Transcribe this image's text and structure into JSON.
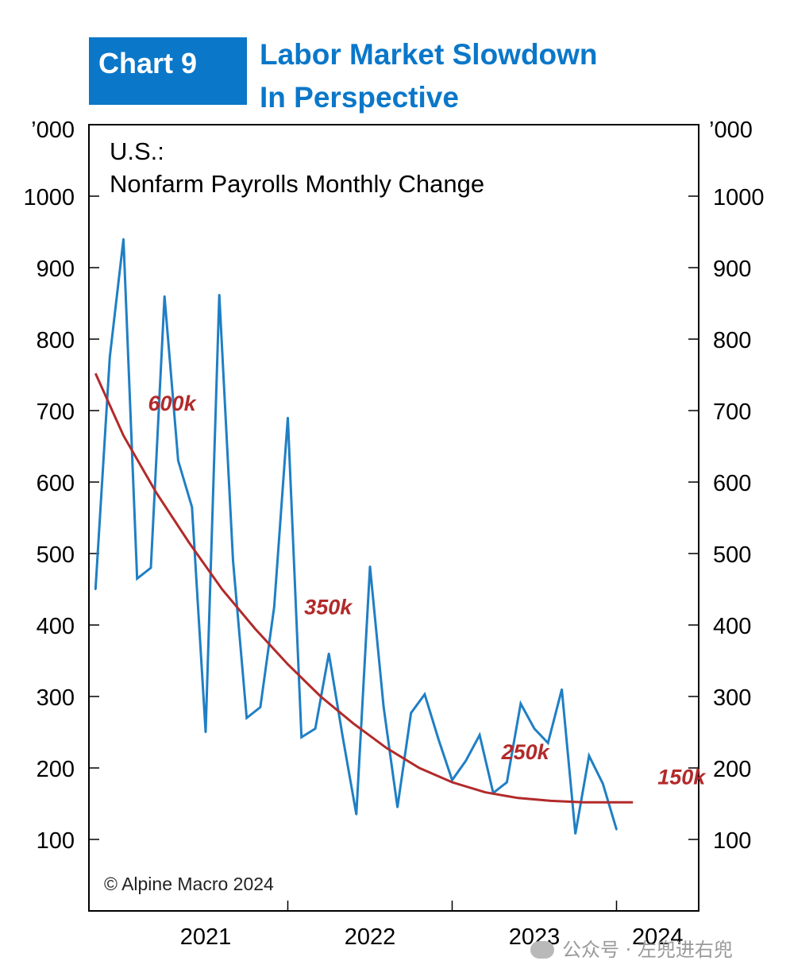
{
  "badge": "Chart 9",
  "title_lines": [
    "Labor Market Slowdown",
    "In Perspective"
  ],
  "watermark": "公众号 · 左兜进右兜",
  "colors": {
    "accent": "#0a77c9",
    "series": "#1f7fc4",
    "trend": "#b22a2a",
    "trend_label": "#b22a2a"
  },
  "chart_data": {
    "type": "line",
    "title": "U.S.:",
    "subtitle": "Nonfarm Payrolls Monthly Change",
    "unit_label": "’000",
    "ylim": [
      0,
      1100
    ],
    "yticks": [
      100,
      200,
      300,
      400,
      500,
      600,
      700,
      800,
      900,
      1000
    ],
    "x_tick_labels": [
      "2021",
      "2022",
      "2023",
      "2024"
    ],
    "x_tick_positions": [
      2021.0,
      2022.0,
      2023.0,
      2024.0
    ],
    "xlim": [
      2020.79,
      2024.5
    ],
    "grid": false,
    "copyright": "© Alpine Macro 2024",
    "series": [
      {
        "x": [
          2020.83,
          2020.917,
          2021.0,
          2021.083,
          2021.167,
          2021.25,
          2021.333,
          2021.417,
          2021.5,
          2021.583,
          2021.667,
          2021.75,
          2021.833,
          2021.917,
          2022.0,
          2022.083,
          2022.167,
          2022.25,
          2022.333,
          2022.417,
          2022.5,
          2022.583,
          2022.667,
          2022.75,
          2022.833,
          2022.917,
          2023.0,
          2023.083,
          2023.167,
          2023.25,
          2023.333,
          2023.417,
          2023.5,
          2023.583,
          2023.667,
          2023.75,
          2023.833,
          2023.917,
          2024.0,
          2024.083,
          2024.167,
          2024.25,
          2024.333
        ],
        "values": [
          450,
          775,
          940,
          465,
          480,
          860,
          630,
          565,
          250,
          862,
          490,
          270,
          285,
          425,
          690,
          243,
          255,
          360,
          245,
          135,
          482,
          285,
          145,
          277,
          303,
          240,
          183,
          210,
          246,
          165,
          180,
          290,
          255,
          235,
          310,
          108,
          217,
          178,
          114,
          null,
          null,
          null,
          null
        ]
      }
    ],
    "trend": {
      "x": [
        2020.83,
        2021.0,
        2021.2,
        2021.4,
        2021.6,
        2021.8,
        2022.0,
        2022.2,
        2022.4,
        2022.6,
        2022.8,
        2023.0,
        2023.2,
        2023.4,
        2023.6,
        2023.8,
        2024.0,
        2024.1
      ],
      "values": [
        752,
        665,
        585,
        515,
        450,
        395,
        345,
        300,
        262,
        228,
        200,
        180,
        166,
        158,
        154,
        152,
        152,
        152
      ]
    },
    "annotations": [
      {
        "text": "600k",
        "x": 2021.15,
        "y": 700
      },
      {
        "text": "350k",
        "x": 2022.1,
        "y": 415
      },
      {
        "text": "250k",
        "x": 2023.3,
        "y": 212
      },
      {
        "text": "150k",
        "x": 2024.25,
        "y": 177
      }
    ]
  }
}
